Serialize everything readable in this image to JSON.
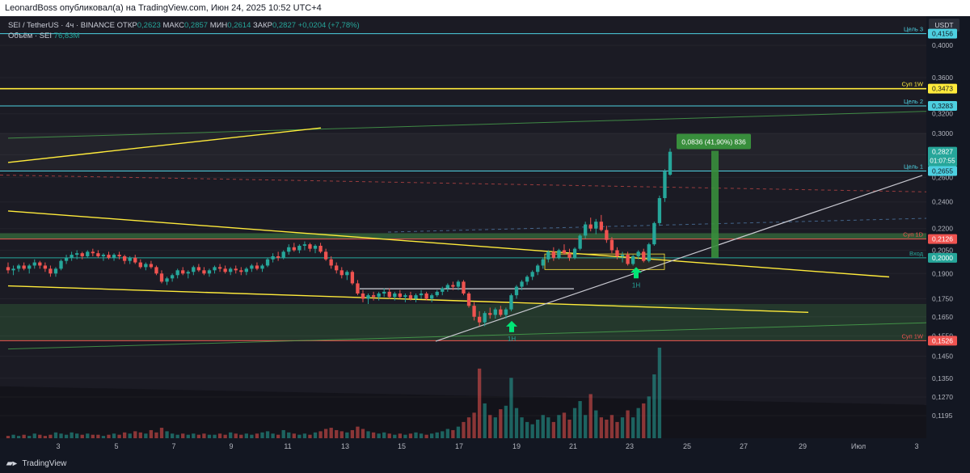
{
  "header": {
    "published_text": "LeonardBoss опубликовал(а) на TradingView.com, Июн 24, 2025 10:52 UTC+4"
  },
  "legend": {
    "symbol": "SEI / TetherUS · 4ч · BINANCE",
    "open_label": "ОТКР",
    "open_value": "0,2623",
    "high_label": "МАКС",
    "high_value": "0,2857",
    "low_label": "МИН",
    "low_value": "0,2614",
    "close_label": "ЗАКР",
    "close_value": "0,2827",
    "change": "+0,0204 (+7,78%)",
    "volume_label": "Объём · SEI",
    "volume_value": "76,83M"
  },
  "footer": {
    "brand": "TradingView"
  },
  "colors": {
    "up": "#26a69a",
    "down": "#ef5350",
    "cyan_level": "#4dd0e1",
    "yellow_level": "#ffeb3b",
    "red_level": "#ef5350",
    "green_zone": "#4caf50"
  },
  "chart_data": {
    "type": "candlestick",
    "symbol": "SEI / TetherUS",
    "timeframe": "4ч",
    "exchange": "BINANCE",
    "y_axis": {
      "currency": "USDT",
      "scale": "log",
      "range": [
        0.111,
        0.44
      ],
      "ticks": [
        "0,4000",
        "0,3600",
        "0,3200",
        "0,3000",
        "0,2800",
        "0,2600",
        "0,2400",
        "0,2200",
        "0,2050",
        "0,1900",
        "0,1750",
        "0,1650",
        "0,1550",
        "0,1450",
        "0,1350",
        "0,1270",
        "0,1195"
      ]
    },
    "x_axis": {
      "ticks": [
        "3",
        "5",
        "7",
        "9",
        "11",
        "13",
        "15",
        "17",
        "19",
        "21",
        "23",
        "25",
        "27",
        "29",
        "Июл",
        "3"
      ]
    },
    "price_labels": [
      {
        "value": 0.4156,
        "text": "0,4156",
        "color": "#4dd0e1"
      },
      {
        "value": 0.3473,
        "text": "0,3473",
        "color": "#ffeb3b"
      },
      {
        "value": 0.3283,
        "text": "0,3283",
        "color": "#4dd0e1"
      },
      {
        "value": 0.2827,
        "text": "0,2827",
        "sub": "01:07:55",
        "color": "#26a69a"
      },
      {
        "value": 0.2655,
        "text": "0,2655",
        "color": "#4dd0e1"
      },
      {
        "value": 0.2126,
        "text": "0,2126",
        "color": "#ef5350"
      },
      {
        "value": 0.2,
        "text": "0,2000",
        "color": "#26a69a"
      },
      {
        "value": 0.1526,
        "text": "0,1526",
        "color": "#ef5350"
      }
    ],
    "horizontal_levels": [
      {
        "value": 0.4156,
        "label": "Цель 3",
        "color": "#4dd0e1"
      },
      {
        "value": 0.3473,
        "label": "Суп 1W",
        "color": "#ffeb3b"
      },
      {
        "value": 0.3283,
        "label": "Цель 2",
        "color": "#4dd0e1"
      },
      {
        "value": 0.2655,
        "label": "Цель 1",
        "color": "#4dd0e1"
      },
      {
        "value": 0.2126,
        "label": "Суп 1D",
        "color": "#ef5350"
      },
      {
        "value": 0.2,
        "label": "Вход",
        "color": "#26a69a"
      },
      {
        "value": 0.1526,
        "label": "Суп 1W",
        "color": "#ef5350"
      }
    ],
    "measure_label": "0,0836 (41,90%) 836",
    "signal_labels": [
      "1H",
      "1H"
    ],
    "last_candle": {
      "open": 0.2623,
      "high": 0.2857,
      "low": 0.2614,
      "close": 0.2827
    },
    "candles": [
      [
        0.194,
        0.197,
        0.19,
        0.192
      ],
      [
        0.192,
        0.195,
        0.189,
        0.193
      ],
      [
        0.193,
        0.196,
        0.191,
        0.195
      ],
      [
        0.195,
        0.197,
        0.192,
        0.193
      ],
      [
        0.193,
        0.196,
        0.19,
        0.195
      ],
      [
        0.195,
        0.199,
        0.193,
        0.197
      ],
      [
        0.197,
        0.198,
        0.193,
        0.195
      ],
      [
        0.195,
        0.197,
        0.191,
        0.193
      ],
      [
        0.193,
        0.195,
        0.188,
        0.19
      ],
      [
        0.19,
        0.194,
        0.188,
        0.193
      ],
      [
        0.193,
        0.199,
        0.192,
        0.198
      ],
      [
        0.198,
        0.202,
        0.196,
        0.2
      ],
      [
        0.2,
        0.204,
        0.198,
        0.202
      ],
      [
        0.202,
        0.205,
        0.199,
        0.203
      ],
      [
        0.203,
        0.204,
        0.199,
        0.201
      ],
      [
        0.201,
        0.205,
        0.2,
        0.204
      ],
      [
        0.204,
        0.206,
        0.201,
        0.203
      ],
      [
        0.203,
        0.205,
        0.2,
        0.201
      ],
      [
        0.201,
        0.203,
        0.198,
        0.202
      ],
      [
        0.202,
        0.204,
        0.199,
        0.2
      ],
      [
        0.2,
        0.203,
        0.198,
        0.202
      ],
      [
        0.202,
        0.204,
        0.199,
        0.201
      ],
      [
        0.201,
        0.202,
        0.196,
        0.198
      ],
      [
        0.198,
        0.201,
        0.196,
        0.2
      ],
      [
        0.2,
        0.202,
        0.196,
        0.197
      ],
      [
        0.197,
        0.199,
        0.193,
        0.194
      ],
      [
        0.194,
        0.197,
        0.192,
        0.196
      ],
      [
        0.196,
        0.198,
        0.193,
        0.194
      ],
      [
        0.194,
        0.195,
        0.189,
        0.19
      ],
      [
        0.19,
        0.192,
        0.184,
        0.185
      ],
      [
        0.185,
        0.188,
        0.183,
        0.187
      ],
      [
        0.187,
        0.19,
        0.185,
        0.189
      ],
      [
        0.189,
        0.193,
        0.187,
        0.192
      ],
      [
        0.192,
        0.194,
        0.189,
        0.19
      ],
      [
        0.19,
        0.192,
        0.187,
        0.191
      ],
      [
        0.191,
        0.195,
        0.189,
        0.194
      ],
      [
        0.194,
        0.196,
        0.191,
        0.192
      ],
      [
        0.192,
        0.194,
        0.189,
        0.19
      ],
      [
        0.19,
        0.193,
        0.188,
        0.192
      ],
      [
        0.192,
        0.195,
        0.19,
        0.194
      ],
      [
        0.194,
        0.196,
        0.191,
        0.193
      ],
      [
        0.193,
        0.195,
        0.19,
        0.191
      ],
      [
        0.191,
        0.194,
        0.189,
        0.193
      ],
      [
        0.193,
        0.195,
        0.19,
        0.192
      ],
      [
        0.192,
        0.194,
        0.189,
        0.191
      ],
      [
        0.191,
        0.194,
        0.189,
        0.193
      ],
      [
        0.193,
        0.196,
        0.191,
        0.195
      ],
      [
        0.195,
        0.197,
        0.192,
        0.193
      ],
      [
        0.193,
        0.196,
        0.191,
        0.195
      ],
      [
        0.195,
        0.2,
        0.194,
        0.199
      ],
      [
        0.199,
        0.203,
        0.197,
        0.201
      ],
      [
        0.201,
        0.204,
        0.198,
        0.2
      ],
      [
        0.2,
        0.205,
        0.199,
        0.204
      ],
      [
        0.204,
        0.209,
        0.202,
        0.207
      ],
      [
        0.207,
        0.21,
        0.204,
        0.205
      ],
      [
        0.205,
        0.209,
        0.203,
        0.208
      ],
      [
        0.208,
        0.211,
        0.205,
        0.209
      ],
      [
        0.209,
        0.21,
        0.204,
        0.206
      ],
      [
        0.206,
        0.209,
        0.203,
        0.208
      ],
      [
        0.208,
        0.21,
        0.203,
        0.204
      ],
      [
        0.204,
        0.206,
        0.198,
        0.199
      ],
      [
        0.199,
        0.201,
        0.193,
        0.195
      ],
      [
        0.195,
        0.197,
        0.19,
        0.192
      ],
      [
        0.192,
        0.194,
        0.187,
        0.189
      ],
      [
        0.189,
        0.192,
        0.186,
        0.191
      ],
      [
        0.191,
        0.192,
        0.183,
        0.184
      ],
      [
        0.184,
        0.186,
        0.177,
        0.178
      ],
      [
        0.178,
        0.18,
        0.173,
        0.175
      ],
      [
        0.175,
        0.178,
        0.172,
        0.177
      ],
      [
        0.177,
        0.179,
        0.174,
        0.176
      ],
      [
        0.176,
        0.179,
        0.174,
        0.178
      ],
      [
        0.178,
        0.181,
        0.176,
        0.179
      ],
      [
        0.179,
        0.181,
        0.175,
        0.176
      ],
      [
        0.176,
        0.179,
        0.174,
        0.178
      ],
      [
        0.178,
        0.18,
        0.175,
        0.176
      ],
      [
        0.176,
        0.178,
        0.173,
        0.177
      ],
      [
        0.177,
        0.179,
        0.174,
        0.175
      ],
      [
        0.175,
        0.178,
        0.173,
        0.177
      ],
      [
        0.177,
        0.18,
        0.175,
        0.178
      ],
      [
        0.178,
        0.179,
        0.174,
        0.175
      ],
      [
        0.175,
        0.178,
        0.173,
        0.177
      ],
      [
        0.177,
        0.18,
        0.176,
        0.179
      ],
      [
        0.179,
        0.182,
        0.177,
        0.181
      ],
      [
        0.181,
        0.184,
        0.179,
        0.183
      ],
      [
        0.183,
        0.185,
        0.18,
        0.182
      ],
      [
        0.182,
        0.186,
        0.18,
        0.185
      ],
      [
        0.185,
        0.186,
        0.177,
        0.178
      ],
      [
        0.178,
        0.179,
        0.17,
        0.171
      ],
      [
        0.171,
        0.173,
        0.163,
        0.165
      ],
      [
        0.165,
        0.168,
        0.16,
        0.162
      ],
      [
        0.162,
        0.168,
        0.16,
        0.167
      ],
      [
        0.167,
        0.17,
        0.164,
        0.166
      ],
      [
        0.166,
        0.17,
        0.164,
        0.169
      ],
      [
        0.169,
        0.171,
        0.165,
        0.166
      ],
      [
        0.166,
        0.17,
        0.164,
        0.169
      ],
      [
        0.169,
        0.178,
        0.168,
        0.177
      ],
      [
        0.177,
        0.183,
        0.175,
        0.182
      ],
      [
        0.182,
        0.186,
        0.18,
        0.185
      ],
      [
        0.185,
        0.189,
        0.183,
        0.188
      ],
      [
        0.188,
        0.192,
        0.186,
        0.191
      ],
      [
        0.191,
        0.196,
        0.189,
        0.195
      ],
      [
        0.195,
        0.2,
        0.193,
        0.199
      ],
      [
        0.199,
        0.205,
        0.197,
        0.204
      ],
      [
        0.204,
        0.207,
        0.198,
        0.2
      ],
      [
        0.2,
        0.206,
        0.199,
        0.205
      ],
      [
        0.205,
        0.209,
        0.202,
        0.203
      ],
      [
        0.203,
        0.206,
        0.198,
        0.2
      ],
      [
        0.2,
        0.207,
        0.199,
        0.206
      ],
      [
        0.206,
        0.216,
        0.205,
        0.215
      ],
      [
        0.215,
        0.225,
        0.213,
        0.223
      ],
      [
        0.223,
        0.228,
        0.218,
        0.22
      ],
      [
        0.22,
        0.227,
        0.216,
        0.225
      ],
      [
        0.225,
        0.23,
        0.218,
        0.219
      ],
      [
        0.219,
        0.222,
        0.21,
        0.212
      ],
      [
        0.212,
        0.214,
        0.203,
        0.205
      ],
      [
        0.205,
        0.207,
        0.199,
        0.201
      ],
      [
        0.201,
        0.204,
        0.197,
        0.202
      ],
      [
        0.202,
        0.204,
        0.195,
        0.196
      ],
      [
        0.196,
        0.202,
        0.195,
        0.201
      ],
      [
        0.201,
        0.205,
        0.199,
        0.204
      ],
      [
        0.204,
        0.206,
        0.197,
        0.198
      ],
      [
        0.198,
        0.21,
        0.197,
        0.209
      ],
      [
        0.209,
        0.225,
        0.208,
        0.224
      ],
      [
        0.224,
        0.245,
        0.222,
        0.243
      ],
      [
        0.243,
        0.267,
        0.24,
        0.265
      ],
      [
        0.2623,
        0.2857,
        0.2614,
        0.2827
      ]
    ],
    "volume": [
      2,
      3,
      2,
      3,
      2,
      4,
      3,
      2,
      3,
      5,
      4,
      3,
      5,
      4,
      3,
      4,
      3,
      3,
      2,
      3,
      4,
      3,
      5,
      4,
      6,
      5,
      4,
      7,
      5,
      9,
      6,
      4,
      3,
      4,
      3,
      4,
      3,
      4,
      3,
      3,
      4,
      3,
      5,
      4,
      3,
      4,
      3,
      4,
      5,
      6,
      4,
      3,
      7,
      5,
      4,
      3,
      4,
      3,
      5,
      6,
      8,
      9,
      7,
      6,
      5,
      7,
      10,
      8,
      6,
      5,
      4,
      5,
      4,
      3,
      4,
      3,
      4,
      5,
      4,
      3,
      4,
      5,
      6,
      8,
      7,
      10,
      14,
      18,
      22,
      60,
      30,
      20,
      18,
      25,
      28,
      52,
      26,
      18,
      14,
      12,
      16,
      20,
      18,
      14,
      20,
      22,
      16,
      26,
      32,
      20,
      38,
      24,
      18,
      16,
      20,
      14,
      18,
      24,
      18,
      26,
      30,
      36,
      55,
      78
    ]
  }
}
